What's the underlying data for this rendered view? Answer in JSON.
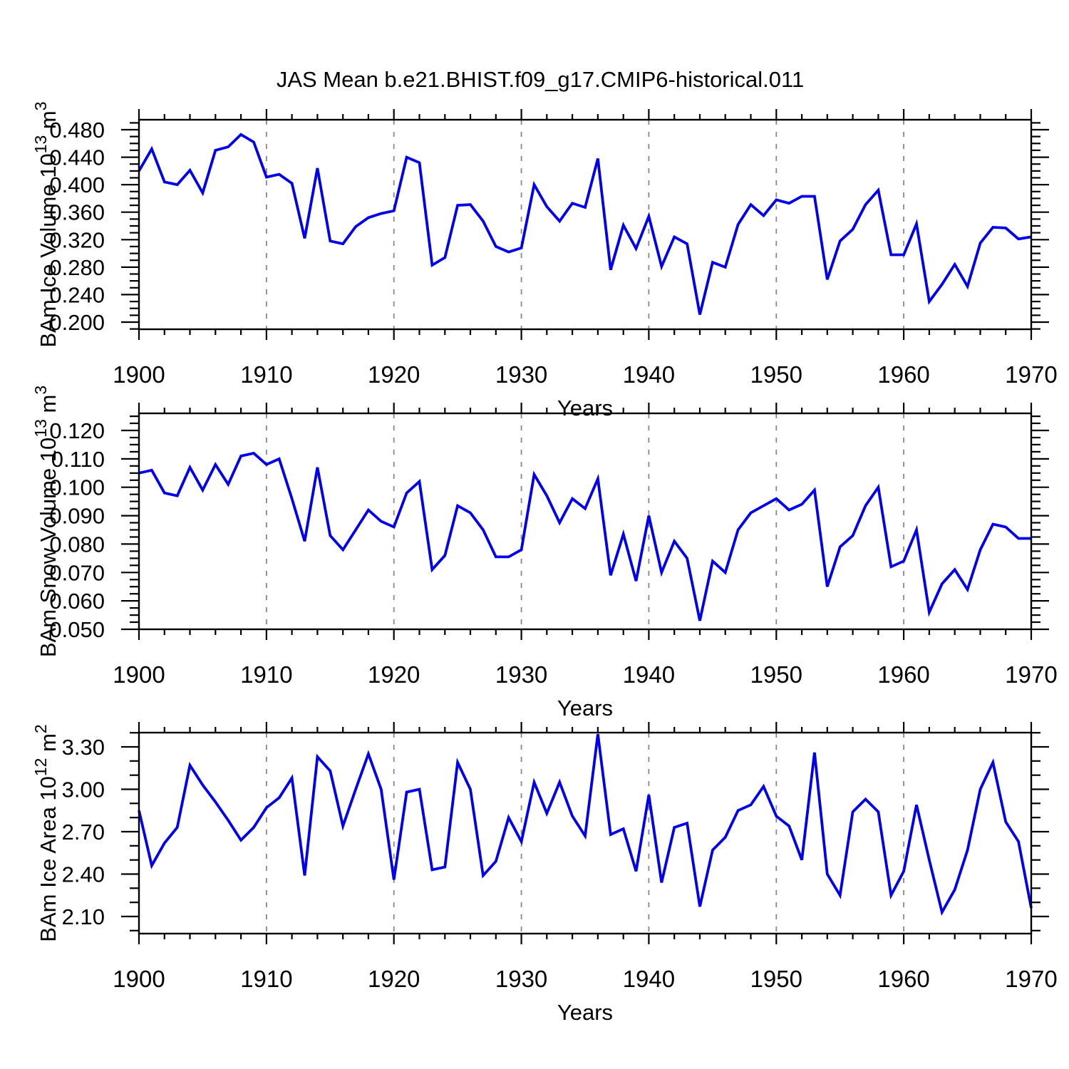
{
  "title": "JAS Mean b.e21.BHIST.f09_g17.CMIP6-historical.011",
  "figure": {
    "background": "#ffffff",
    "line_color": "#0000ee",
    "grid_color": "#888888",
    "axis_color": "#000000",
    "text_color": "#000000"
  },
  "years": [
    1900,
    1901,
    1902,
    1903,
    1904,
    1905,
    1906,
    1907,
    1908,
    1909,
    1910,
    1911,
    1912,
    1913,
    1914,
    1915,
    1916,
    1917,
    1918,
    1919,
    1920,
    1921,
    1922,
    1923,
    1924,
    1925,
    1926,
    1927,
    1928,
    1929,
    1930,
    1931,
    1932,
    1933,
    1934,
    1935,
    1936,
    1937,
    1938,
    1939,
    1940,
    1941,
    1942,
    1943,
    1944,
    1945,
    1946,
    1947,
    1948,
    1949,
    1950,
    1951,
    1952,
    1953,
    1954,
    1955,
    1956,
    1957,
    1958,
    1959,
    1960,
    1961,
    1962,
    1963,
    1964,
    1965,
    1966,
    1967,
    1968,
    1969,
    1970
  ],
  "chart_data": [
    {
      "type": "line",
      "name": "bam-ice-volume",
      "xlabel": "Years",
      "ylabel_text": "BAm Ice Volume 10^13 m^3",
      "ylabel_segments": [
        {
          "t": "BAm Ice Volume 10"
        },
        {
          "t": "13",
          "sup": true
        },
        {
          "t": " m"
        },
        {
          "t": "3",
          "sup": true
        }
      ],
      "ylim": [
        0.2,
        0.48
      ],
      "yticks": [
        0.2,
        0.24,
        0.28,
        0.32,
        0.36,
        0.4,
        0.44,
        0.48
      ],
      "ytick_labels": [
        "0.200",
        "0.240",
        "0.280",
        "0.320",
        "0.360",
        "0.400",
        "0.440",
        "0.480"
      ],
      "y_minor_step": 0.01,
      "xticks": [
        1900,
        1910,
        1920,
        1930,
        1940,
        1950,
        1960,
        1970
      ],
      "xtick_labels": [
        "1900",
        "1910",
        "1920",
        "1930",
        "1940",
        "1950",
        "1960",
        "1970"
      ],
      "x_minor_step": 2,
      "grid_x": [
        1910,
        1920,
        1930,
        1940,
        1950,
        1960
      ],
      "values": [
        0.42,
        0.452,
        0.404,
        0.4,
        0.421,
        0.388,
        0.45,
        0.455,
        0.473,
        0.462,
        0.411,
        0.415,
        0.402,
        0.322,
        0.424,
        0.318,
        0.314,
        0.339,
        0.352,
        0.358,
        0.362,
        0.44,
        0.432,
        0.283,
        0.294,
        0.37,
        0.371,
        0.347,
        0.31,
        0.302,
        0.308,
        0.4,
        0.368,
        0.347,
        0.373,
        0.367,
        0.438,
        0.276,
        0.341,
        0.307,
        0.354,
        0.281,
        0.324,
        0.314,
        0.211,
        0.287,
        0.28,
        0.342,
        0.371,
        0.355,
        0.378,
        0.373,
        0.383,
        0.383,
        0.262,
        0.318,
        0.335,
        0.371,
        0.392,
        0.298,
        0.298,
        0.343,
        0.23,
        0.255,
        0.284,
        0.252,
        0.315,
        0.338,
        0.337,
        0.321,
        0.324
      ]
    },
    {
      "type": "line",
      "name": "bam-snow-volume",
      "xlabel": "Years",
      "ylabel_text": "BAm Snow Volume 10^13 m^3",
      "ylabel_segments": [
        {
          "t": "BAm Snow Volume 10"
        },
        {
          "t": "13",
          "sup": true
        },
        {
          "t": " m"
        },
        {
          "t": "3",
          "sup": true
        }
      ],
      "ylim": [
        0.05,
        0.12
      ],
      "yticks": [
        0.05,
        0.06,
        0.07,
        0.08,
        0.09,
        0.1,
        0.11,
        0.12
      ],
      "ytick_labels": [
        "0.050",
        "0.060",
        "0.070",
        "0.080",
        "0.090",
        "0.100",
        "0.110",
        "0.120"
      ],
      "y_minor_step": 0.0025,
      "xticks": [
        1900,
        1910,
        1920,
        1930,
        1940,
        1950,
        1960,
        1970
      ],
      "xtick_labels": [
        "1900",
        "1910",
        "1920",
        "1930",
        "1940",
        "1950",
        "1960",
        "1970"
      ],
      "x_minor_step": 2,
      "grid_x": [
        1910,
        1920,
        1930,
        1940,
        1950,
        1960
      ],
      "values": [
        0.105,
        0.106,
        0.098,
        0.097,
        0.107,
        0.099,
        0.108,
        0.101,
        0.111,
        0.112,
        0.108,
        0.11,
        0.096,
        0.081,
        0.107,
        0.083,
        0.078,
        0.085,
        0.092,
        0.088,
        0.086,
        0.098,
        0.102,
        0.071,
        0.076,
        0.0935,
        0.091,
        0.085,
        0.0755,
        0.0755,
        0.078,
        0.1045,
        0.097,
        0.0875,
        0.096,
        0.0925,
        0.103,
        0.069,
        0.0835,
        0.067,
        0.09,
        0.07,
        0.081,
        0.075,
        0.053,
        0.074,
        0.07,
        0.085,
        0.091,
        0.0935,
        0.096,
        0.092,
        0.094,
        0.099,
        0.065,
        0.079,
        0.083,
        0.0935,
        0.1,
        0.072,
        0.074,
        0.085,
        0.056,
        0.066,
        0.071,
        0.064,
        0.078,
        0.087,
        0.086,
        0.082,
        0.082
      ]
    },
    {
      "type": "line",
      "name": "bam-ice-area",
      "xlabel": "Years",
      "ylabel_text": "BAm Ice Area 10^12 m^2",
      "ylabel_segments": [
        {
          "t": "BAm Ice Area 10"
        },
        {
          "t": "12",
          "sup": true
        },
        {
          "t": " m"
        },
        {
          "t": "2",
          "sup": true
        }
      ],
      "ylim": [
        2.1,
        3.3
      ],
      "yticks": [
        2.1,
        2.4,
        2.7,
        3.0,
        3.3
      ],
      "ytick_labels": [
        "2.10",
        "2.40",
        "2.70",
        "3.00",
        "3.30"
      ],
      "y_minor_step": 0.1,
      "xticks": [
        1900,
        1910,
        1920,
        1930,
        1940,
        1950,
        1960,
        1970
      ],
      "xtick_labels": [
        "1900",
        "1910",
        "1920",
        "1930",
        "1940",
        "1950",
        "1960",
        "1970"
      ],
      "x_minor_step": 2,
      "grid_x": [
        1910,
        1920,
        1930,
        1940,
        1950,
        1960
      ],
      "values": [
        2.85,
        2.46,
        2.62,
        2.73,
        3.17,
        3.03,
        2.91,
        2.78,
        2.64,
        2.73,
        2.87,
        2.94,
        3.08,
        2.39,
        3.23,
        3.13,
        2.74,
        3.0,
        3.25,
        3.0,
        2.36,
        2.98,
        3.0,
        2.43,
        2.45,
        3.19,
        3.0,
        2.39,
        2.49,
        2.8,
        2.63,
        3.05,
        2.83,
        3.05,
        2.81,
        2.67,
        3.39,
        2.68,
        2.72,
        2.42,
        2.96,
        2.34,
        2.73,
        2.76,
        2.17,
        2.57,
        2.66,
        2.85,
        2.89,
        3.02,
        2.81,
        2.74,
        2.5,
        3.26,
        2.4,
        2.25,
        2.84,
        2.93,
        2.84,
        2.25,
        2.42,
        2.89,
        2.5,
        2.13,
        2.29,
        2.57,
        3.0,
        3.19,
        2.77,
        2.63,
        2.16
      ]
    }
  ]
}
